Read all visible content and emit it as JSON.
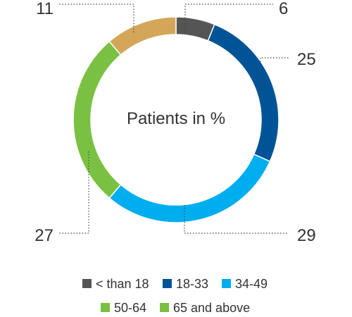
{
  "chart_data": {
    "type": "pie",
    "subtype": "donut",
    "title": "",
    "center_label": "Patients in %",
    "series": [
      {
        "name": "< than 18",
        "value": 6,
        "color": "#555555"
      },
      {
        "name": "18-33",
        "value": 25,
        "color": "#005397"
      },
      {
        "name": "34-49",
        "value": 29,
        "color": "#00aeef"
      },
      {
        "name": "50-64",
        "value": 27,
        "color": "#7ac143"
      },
      {
        "name": "65 and above",
        "value": 11,
        "color": "#d4a65a"
      }
    ],
    "legend": {
      "placement": "bottom",
      "rows": [
        [
          "< than 18",
          "18-33",
          "34-49"
        ],
        [
          "50-64",
          "65 and above"
        ]
      ],
      "colors": [
        "#555555",
        "#005397",
        "#00aeef",
        "#7ac143",
        "#7ac143"
      ]
    },
    "value_labels": [
      "6",
      "25",
      "29",
      "27",
      "11"
    ],
    "leader_style": "dotted"
  }
}
